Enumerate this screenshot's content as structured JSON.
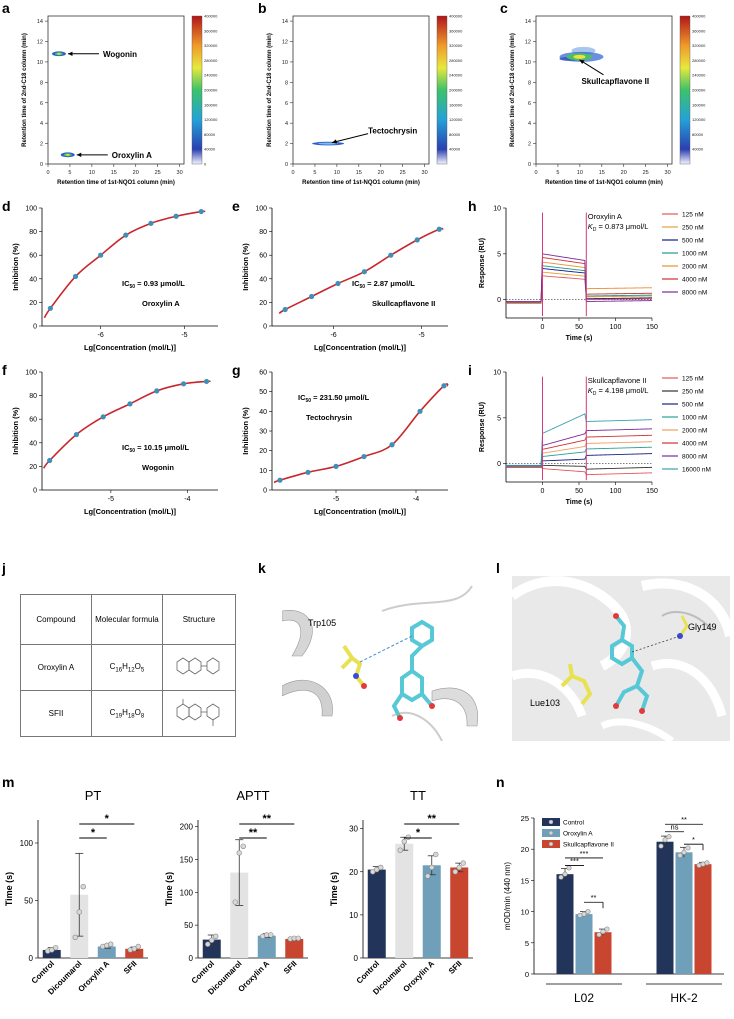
{
  "panel_labels": {
    "a": "a",
    "b": "b",
    "c": "c",
    "d": "d",
    "e": "e",
    "f": "f",
    "g": "g",
    "h": "h",
    "i": "i",
    "j": "j",
    "k": "k",
    "l": "l",
    "m": "m",
    "n": "n"
  },
  "chart_data": [
    {
      "id": "a",
      "type": "heatmap",
      "xlabel": "Retention time of 1st-NQO1 column (min)",
      "ylabel": "Retention time of 2nd-C18 column (min)",
      "xticks": [
        0,
        5,
        10,
        15,
        20,
        25,
        30
      ],
      "yticks": [
        0,
        2,
        4,
        6,
        8,
        10,
        12,
        14
      ],
      "xlim": [
        0,
        31
      ],
      "ylim": [
        0,
        14.5
      ],
      "colorbar_ticks": [
        0,
        40000,
        80000,
        120000,
        160000,
        200000,
        240000,
        280000,
        320000,
        360000,
        400000
      ],
      "spots": [
        {
          "x": 2.5,
          "y": 10.8,
          "label": "Wogonin"
        },
        {
          "x": 4.5,
          "y": 0.9,
          "label": "Oroxylin A"
        }
      ],
      "annotations": [
        "Wogonin",
        "Oroxylin A"
      ]
    },
    {
      "id": "b",
      "type": "heatmap",
      "xlabel": "Retention time of 1st-NQO1 column (min)",
      "ylabel": "Retention time of 2nd-C18 column (min)",
      "xticks": [
        0,
        5,
        10,
        15,
        20,
        25,
        30
      ],
      "yticks": [
        0,
        2,
        4,
        6,
        8,
        10,
        12,
        14
      ],
      "xlim": [
        0,
        31
      ],
      "ylim": [
        0,
        14.5
      ],
      "colorbar_ticks": [
        40000,
        80000,
        120000,
        160000,
        200000,
        240000,
        280000,
        320000,
        360000,
        400000
      ],
      "spots": [
        {
          "x": 8,
          "y": 2.0,
          "label": "Tectochrysin"
        }
      ],
      "annotations": [
        "Tectochrysin"
      ]
    },
    {
      "id": "c",
      "type": "heatmap",
      "xlabel": "Retention time of 1st-NQO1 column (min)",
      "ylabel": "Retention time of 2nd-C18 column (min)",
      "xticks": [
        0,
        5,
        10,
        15,
        20,
        25,
        30
      ],
      "yticks": [
        0,
        2,
        4,
        6,
        8,
        10,
        12,
        14
      ],
      "xlim": [
        0,
        31
      ],
      "ylim": [
        0,
        14.5
      ],
      "colorbar_ticks": [
        40000,
        80000,
        120000,
        160000,
        200000,
        240000,
        280000,
        320000,
        360000,
        400000
      ],
      "spots": [
        {
          "x": 9,
          "y": 10.5,
          "label": "Skullcapflavone II"
        }
      ],
      "annotations": [
        "Skullcapflavone II"
      ]
    },
    {
      "id": "d",
      "type": "scatter",
      "xlabel": "Lg[Concentration (mol/L)]",
      "ylabel": "Inhibition (%)",
      "xlim": [
        -6.7,
        -4.6
      ],
      "ylim": [
        0,
        100
      ],
      "xticks": [
        -6,
        -5
      ],
      "yticks": [
        0,
        20,
        40,
        60,
        80,
        100
      ],
      "x": [
        -6.6,
        -6.3,
        -6.0,
        -5.7,
        -5.4,
        -5.1,
        -4.8
      ],
      "y": [
        15,
        42,
        60,
        77,
        87,
        93,
        97
      ],
      "ic50_text": "IC₅₀ = 0.93 μmol/L",
      "compound": "Oroxylin A"
    },
    {
      "id": "e",
      "type": "scatter",
      "xlabel": "Lg[Concentration (mol/L)]",
      "ylabel": "Inhibition (%)",
      "xlim": [
        -6.7,
        -4.7
      ],
      "ylim": [
        0,
        100
      ],
      "xticks": [
        -6,
        -5
      ],
      "yticks": [
        0,
        20,
        40,
        60,
        80,
        100
      ],
      "x": [
        -6.55,
        -6.25,
        -5.95,
        -5.65,
        -5.35,
        -5.05,
        -4.8
      ],
      "y": [
        14,
        25,
        36,
        46,
        60,
        73,
        82
      ],
      "ic50_text": "IC₅₀ = 2.87 μmol/L",
      "compound": "Skullcapflavone II"
    },
    {
      "id": "f",
      "type": "scatter",
      "xlabel": "Lg[Concentration (mol/L)]",
      "ylabel": "Inhibition (%)",
      "xlim": [
        -5.9,
        -3.6
      ],
      "ylim": [
        0,
        100
      ],
      "xticks": [
        -5,
        -4
      ],
      "yticks": [
        0,
        20,
        40,
        60,
        80,
        100
      ],
      "x": [
        -5.8,
        -5.45,
        -5.1,
        -4.75,
        -4.4,
        -4.05,
        -3.75
      ],
      "y": [
        25,
        47,
        62,
        73,
        84,
        90,
        92
      ],
      "ic50_text": "IC₅₀ = 10.15 μmol/L",
      "compound": "Wogonin"
    },
    {
      "id": "g",
      "type": "scatter",
      "xlabel": "Lg[Concentration (mol/L)]",
      "ylabel": "Inhibition (%)",
      "xlim": [
        -5.8,
        -3.6
      ],
      "ylim": [
        0,
        60
      ],
      "xticks": [
        -5,
        -4
      ],
      "yticks": [
        0,
        10,
        20,
        30,
        40,
        50,
        60
      ],
      "x": [
        -5.7,
        -5.35,
        -5.0,
        -4.65,
        -4.3,
        -3.95,
        -3.65
      ],
      "y": [
        5,
        9,
        12,
        17,
        23,
        40,
        53
      ],
      "ic50_text": "IC₅₀ = 231.50 μmol/L",
      "compound": "Tectochrysin"
    },
    {
      "id": "h",
      "type": "line",
      "xlabel": "Time (s)",
      "ylabel": "Response (RU)",
      "xlim": [
        -50,
        150
      ],
      "ylim": [
        -2,
        10
      ],
      "xticks": [
        0,
        50,
        100,
        150
      ],
      "yticks": [
        0,
        5,
        10
      ],
      "compound": "Oroxylin A",
      "kd_text": "K_D = 0.873 μmol/L",
      "series": [
        {
          "name": "125 nM",
          "color": "#e4585c",
          "assoc": 2.6,
          "dissoc": 0.0
        },
        {
          "name": "250 nM",
          "color": "#e7a035",
          "assoc": 3.0,
          "dissoc": 0.3
        },
        {
          "name": "500 nM",
          "color": "#0f1b8f",
          "assoc": 3.4,
          "dissoc": 0.1
        },
        {
          "name": "1000 nM",
          "color": "#1d9a8a",
          "assoc": 3.7,
          "dissoc": 0.4
        },
        {
          "name": "2000 nM",
          "color": "#ef8c32",
          "assoc": 4.1,
          "dissoc": 1.2
        },
        {
          "name": "4000 nM",
          "color": "#cf2f2f",
          "assoc": 4.6,
          "dissoc": 0.6
        },
        {
          "name": "8000 nM",
          "color": "#7a2a9a",
          "assoc": 5.0,
          "dissoc": -0.2
        }
      ]
    },
    {
      "id": "i",
      "type": "line",
      "xlabel": "Time (s)",
      "ylabel": "Response (RU)",
      "xlim": [
        -50,
        150
      ],
      "ylim": [
        -2,
        10
      ],
      "xticks": [
        0,
        50,
        100,
        150
      ],
      "yticks": [
        0,
        5,
        10
      ],
      "compound": "Skullcapflavone II",
      "kd_text": "K_D = 4.198 μmol/L",
      "series": [
        {
          "name": "125 nM",
          "color": "#e4585c",
          "assoc": -0.9,
          "dissoc": -1.2
        },
        {
          "name": "250 nM",
          "color": "#333333",
          "assoc": -0.3,
          "dissoc": -0.6
        },
        {
          "name": "500 nM",
          "color": "#1a237e",
          "assoc": 0.5,
          "dissoc": 0.9
        },
        {
          "name": "1000 nM",
          "color": "#2aa198",
          "assoc": 1.3,
          "dissoc": 1.6
        },
        {
          "name": "2000 nM",
          "color": "#f0a060",
          "assoc": 1.9,
          "dissoc": 2.2
        },
        {
          "name": "4000 nM",
          "color": "#d03030",
          "assoc": 2.6,
          "dissoc": 2.9
        },
        {
          "name": "8000 nM",
          "color": "#7a2a9a",
          "assoc": 3.3,
          "dissoc": 3.6
        },
        {
          "name": "16000 nM",
          "color": "#3aa0b0",
          "assoc": 5.5,
          "dissoc": 4.6
        }
      ]
    },
    {
      "id": "m-pt",
      "type": "bar",
      "title": "PT",
      "ylabel": "Time (s)",
      "categories": [
        "Control",
        "Dicoumarol",
        "Oroxylin A",
        "SFII"
      ],
      "values": [
        7,
        55,
        10,
        8
      ],
      "errors": [
        2,
        36,
        1.5,
        1.5
      ],
      "points": [
        [
          6,
          7,
          9
        ],
        [
          18,
          40,
          62
        ],
        [
          10,
          11,
          12
        ],
        [
          7,
          8,
          10
        ]
      ],
      "ylim": [
        0,
        120
      ],
      "yticks": [
        0,
        50,
        100
      ],
      "colors": [
        "#22345a",
        "#e3e3e3",
        "#6f9fb9",
        "#c84530"
      ],
      "significance": [
        {
          "from": 1,
          "to": 2,
          "label": "*"
        },
        {
          "from": 1,
          "to": 3,
          "label": "*"
        }
      ]
    },
    {
      "id": "m-aptt",
      "type": "bar",
      "title": "APTT",
      "ylabel": "Time (s)",
      "categories": [
        "Control",
        "Dicoumarol",
        "Oroxylin A",
        "SFII"
      ],
      "values": [
        28,
        130,
        34,
        29
      ],
      "errors": [
        7,
        50,
        3,
        2
      ],
      "points": [
        [
          21,
          27,
          33
        ],
        [
          85,
          160,
          170
        ],
        [
          33,
          35,
          35
        ],
        [
          29,
          30,
          30
        ]
      ],
      "ylim": [
        0,
        210
      ],
      "yticks": [
        0,
        50,
        100,
        150,
        200
      ],
      "colors": [
        "#22345a",
        "#e3e3e3",
        "#6f9fb9",
        "#c84530"
      ],
      "significance": [
        {
          "from": 1,
          "to": 2,
          "label": "**"
        },
        {
          "from": 1,
          "to": 3,
          "label": "**"
        }
      ]
    },
    {
      "id": "m-tt",
      "type": "bar",
      "title": "TT",
      "ylabel": "Time (s)",
      "categories": [
        "Control",
        "Dicoumarol",
        "Oroxylin A",
        "SFII"
      ],
      "values": [
        20.5,
        26.5,
        21.5,
        21
      ],
      "errors": [
        0.7,
        1.5,
        2.2,
        1.0
      ],
      "points": [
        [
          20,
          20.5,
          21
        ],
        [
          25,
          27,
          28
        ],
        [
          19,
          21,
          24
        ],
        [
          20,
          21,
          22
        ]
      ],
      "ylim": [
        0,
        32
      ],
      "yticks": [
        0,
        10,
        20,
        30
      ],
      "colors": [
        "#22345a",
        "#e3e3e3",
        "#6f9fb9",
        "#c84530"
      ],
      "significance": [
        {
          "from": 1,
          "to": 2,
          "label": "*"
        },
        {
          "from": 1,
          "to": 3,
          "label": "**"
        }
      ]
    },
    {
      "id": "n",
      "type": "bar",
      "ylabel": "mOD/min (440 nm)",
      "groups": [
        "L02",
        "HK-2"
      ],
      "series": [
        {
          "name": "Control",
          "color": "#22345a",
          "values": [
            16,
            21.2
          ],
          "errors": [
            0.9,
            0.9
          ],
          "points": [
            [
              15.5,
              16,
              17
            ],
            [
              20.5,
              21.5,
              22
            ]
          ]
        },
        {
          "name": "Oroxylin A",
          "color": "#6f9fb9",
          "values": [
            9.6,
            19.5
          ],
          "errors": [
            0.4,
            0.8
          ],
          "points": [
            [
              9.4,
              9.6,
              10
            ],
            [
              19,
              19.5,
              20.2
            ]
          ]
        },
        {
          "name": "Skullcapflavone II",
          "color": "#c84530",
          "values": [
            6.7,
            17.6
          ],
          "errors": [
            0.5,
            0.3
          ],
          "points": [
            [
              6.3,
              6.8,
              7.2
            ],
            [
              17.4,
              17.6,
              17.8
            ]
          ]
        }
      ],
      "ylim": [
        0,
        25
      ],
      "yticks": [
        0,
        5,
        10,
        15,
        20,
        25
      ],
      "significance": [
        {
          "group": 0,
          "from": 0,
          "to": 1,
          "label": "***"
        },
        {
          "group": 0,
          "from": 0,
          "to": 2,
          "label": "***"
        },
        {
          "group": 0,
          "from": 1,
          "to": 2,
          "label": "**"
        },
        {
          "group": 1,
          "from": 0,
          "to": 1,
          "label": "ns"
        },
        {
          "group": 1,
          "from": 0,
          "to": 2,
          "label": "**"
        },
        {
          "group": 1,
          "from": 1,
          "to": 2,
          "label": "*"
        }
      ]
    }
  ],
  "table": {
    "headers": [
      "Compound",
      "Molecular formula",
      "Structure"
    ],
    "rows": [
      {
        "compound": "Oroxylin A",
        "formula": "C16H12O5"
      },
      {
        "compound": "SFII",
        "formula": "C19H18O8"
      }
    ]
  },
  "docking": {
    "k_residue": "Trp105",
    "l_residue_1": "Gly149",
    "l_residue_2": "Lue103"
  }
}
